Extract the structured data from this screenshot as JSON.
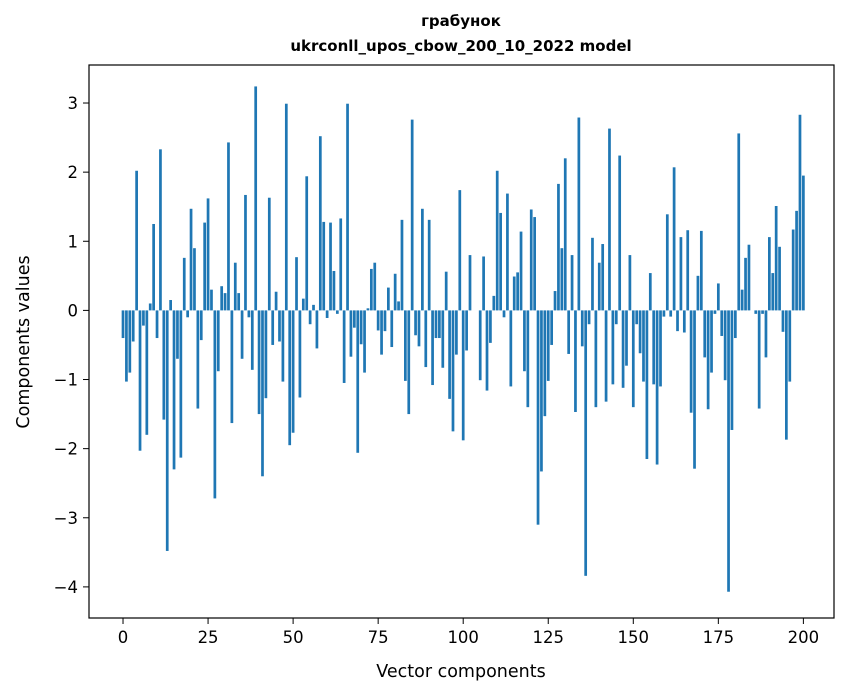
{
  "chart_data": {
    "type": "bar",
    "title_line1": "грабунок",
    "title_line2": "ukrconll_upos_cbow_200_10_2022 model",
    "xlabel": "Vector components",
    "ylabel": "Components values",
    "xlim": [
      -10,
      209
    ],
    "ylim": [
      -4.45,
      3.55
    ],
    "xticks": [
      0,
      25,
      50,
      75,
      100,
      125,
      150,
      175,
      200
    ],
    "yticks": [
      -4,
      -3,
      -2,
      -1,
      0,
      1,
      2,
      3
    ],
    "bar_color": "#1f77b4",
    "values": [
      -0.4,
      -1.03,
      -0.9,
      -0.45,
      2.02,
      -2.03,
      -0.22,
      -1.8,
      0.1,
      1.25,
      -0.4,
      2.33,
      -1.58,
      -3.48,
      0.15,
      -2.3,
      -0.7,
      -2.13,
      0.76,
      -0.1,
      1.47,
      0.9,
      -1.42,
      -0.43,
      1.27,
      1.62,
      0.3,
      -2.72,
      -0.88,
      0.35,
      0.25,
      2.43,
      -1.63,
      0.69,
      0.25,
      -0.7,
      1.67,
      -0.1,
      -0.86,
      3.24,
      -1.5,
      -2.4,
      -1.27,
      1.63,
      -0.5,
      0.27,
      -0.45,
      -1.03,
      2.99,
      -1.95,
      -1.77,
      0.77,
      -1.26,
      0.17,
      1.94,
      -0.2,
      0.08,
      -0.55,
      2.52,
      1.28,
      -0.11,
      1.27,
      0.57,
      -0.05,
      1.33,
      -1.05,
      2.99,
      -0.67,
      -0.25,
      -2.06,
      -0.49,
      -0.9,
      0.03,
      0.6,
      0.69,
      -0.29,
      -0.64,
      -0.3,
      0.33,
      -0.53,
      0.53,
      0.13,
      1.31,
      -1.02,
      -1.5,
      2.76,
      -0.36,
      -0.52,
      1.47,
      -0.82,
      1.31,
      -1.08,
      -0.4,
      -0.4,
      -0.83,
      0.56,
      -1.28,
      -1.75,
      -0.64,
      1.74,
      -1.88,
      -0.58,
      0.8,
      0.0,
      0.0,
      -1.01,
      0.78,
      -1.16,
      -0.47,
      0.21,
      2.02,
      1.41,
      -0.1,
      1.69,
      -1.1,
      0.49,
      0.55,
      1.14,
      -0.88,
      -1.4,
      1.46,
      1.35,
      -3.1,
      -2.33,
      -1.53,
      -1.02,
      -0.5,
      0.28,
      1.83,
      0.9,
      2.2,
      -0.63,
      0.8,
      -1.47,
      2.79,
      -0.52,
      -3.84,
      -0.2,
      1.05,
      -1.4,
      0.69,
      0.96,
      -1.32,
      2.63,
      -1.07,
      -0.2,
      2.24,
      -1.12,
      -0.8,
      0.8,
      -1.4,
      -0.2,
      -0.62,
      -1.03,
      -2.15,
      0.54,
      -1.07,
      -2.23,
      -1.1,
      -0.09,
      1.39,
      -0.09,
      2.07,
      -0.3,
      1.06,
      -0.32,
      1.16,
      -1.48,
      -2.29,
      0.5,
      1.15,
      -0.68,
      -1.43,
      -0.9,
      -0.05,
      0.39,
      -0.37,
      -1.01,
      -4.07,
      -1.73,
      -0.4,
      2.56,
      0.3,
      0.76,
      0.95,
      0.0,
      -0.05,
      -1.42,
      -0.05,
      -0.68,
      1.06,
      0.54,
      1.51,
      0.92,
      -0.31,
      -1.87,
      -1.03,
      1.17,
      1.44,
      2.83,
      1.95
    ]
  }
}
